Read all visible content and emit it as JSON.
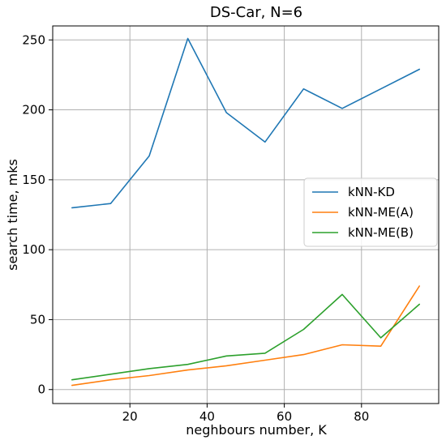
{
  "chart_data": {
    "type": "line",
    "title": "DS-Car, N=6",
    "xlabel": "neghbours number, K",
    "ylabel": "search time, mks",
    "xlim": [
      0,
      100
    ],
    "ylim": [
      -10,
      260
    ],
    "xticks": [
      20,
      40,
      60,
      80
    ],
    "yticks": [
      0,
      50,
      100,
      150,
      200,
      250
    ],
    "grid": true,
    "legend_position": "center-right",
    "x": [
      5,
      15,
      25,
      35,
      45,
      55,
      65,
      75,
      85,
      95
    ],
    "series": [
      {
        "name": "kNN-KD",
        "color": "#1f77b4",
        "values": [
          130,
          133,
          167,
          251,
          198,
          177,
          215,
          201,
          215,
          229
        ]
      },
      {
        "name": "kNN-ME(A)",
        "color": "#ff7f0e",
        "values": [
          3,
          7,
          10,
          14,
          17,
          21,
          25,
          32,
          31,
          74
        ]
      },
      {
        "name": "kNN-ME(B)",
        "color": "#2ca02c",
        "values": [
          7,
          11,
          15,
          18,
          24,
          26,
          43,
          68,
          37,
          61
        ]
      }
    ]
  }
}
